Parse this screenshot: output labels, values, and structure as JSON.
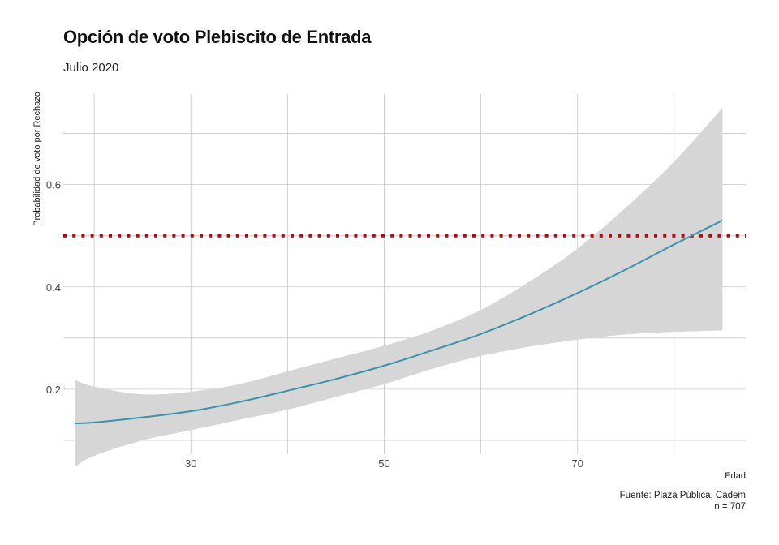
{
  "chart_data": {
    "type": "line",
    "title": "Opción de voto Plebiscito de Entrada",
    "subtitle": "Julio 2020",
    "xlabel": "Edad",
    "ylabel": "Probabilidad de voto por Rechazo",
    "caption_lines": [
      "Fuente: Plaza Pública, Cadem",
      "n = 707"
    ],
    "xlim": [
      16.8,
      87.4
    ],
    "ylim": [
      0.073,
      0.777
    ],
    "x_ticks": [
      30,
      50,
      70
    ],
    "y_ticks": [
      0.2,
      0.4,
      0.6
    ],
    "y_tick_labels": [
      "0.2",
      "0.4",
      "0.6"
    ],
    "grid": true,
    "reference_line": {
      "y": 0.5,
      "style": "dotted",
      "color": "#cc0000"
    },
    "series": [
      {
        "x": [
          18,
          20,
          25,
          30,
          35,
          40,
          45,
          50,
          55,
          60,
          65,
          70,
          75,
          80,
          85
        ],
        "y": [
          0.133,
          0.135,
          0.145,
          0.157,
          0.175,
          0.197,
          0.22,
          0.246,
          0.276,
          0.308,
          0.346,
          0.388,
          0.434,
          0.483,
          0.53
        ],
        "lower": [
          0.048,
          0.07,
          0.1,
          0.12,
          0.14,
          0.16,
          0.185,
          0.21,
          0.24,
          0.265,
          0.283,
          0.297,
          0.307,
          0.312,
          0.315
        ],
        "upper": [
          0.218,
          0.205,
          0.19,
          0.195,
          0.21,
          0.235,
          0.26,
          0.285,
          0.315,
          0.355,
          0.41,
          0.475,
          0.555,
          0.645,
          0.75
        ]
      }
    ]
  },
  "colors": {
    "line": "#3a93ad",
    "band": "#d6d6d6",
    "grid": "#c8c8c8",
    "reference": "#cc0000"
  }
}
